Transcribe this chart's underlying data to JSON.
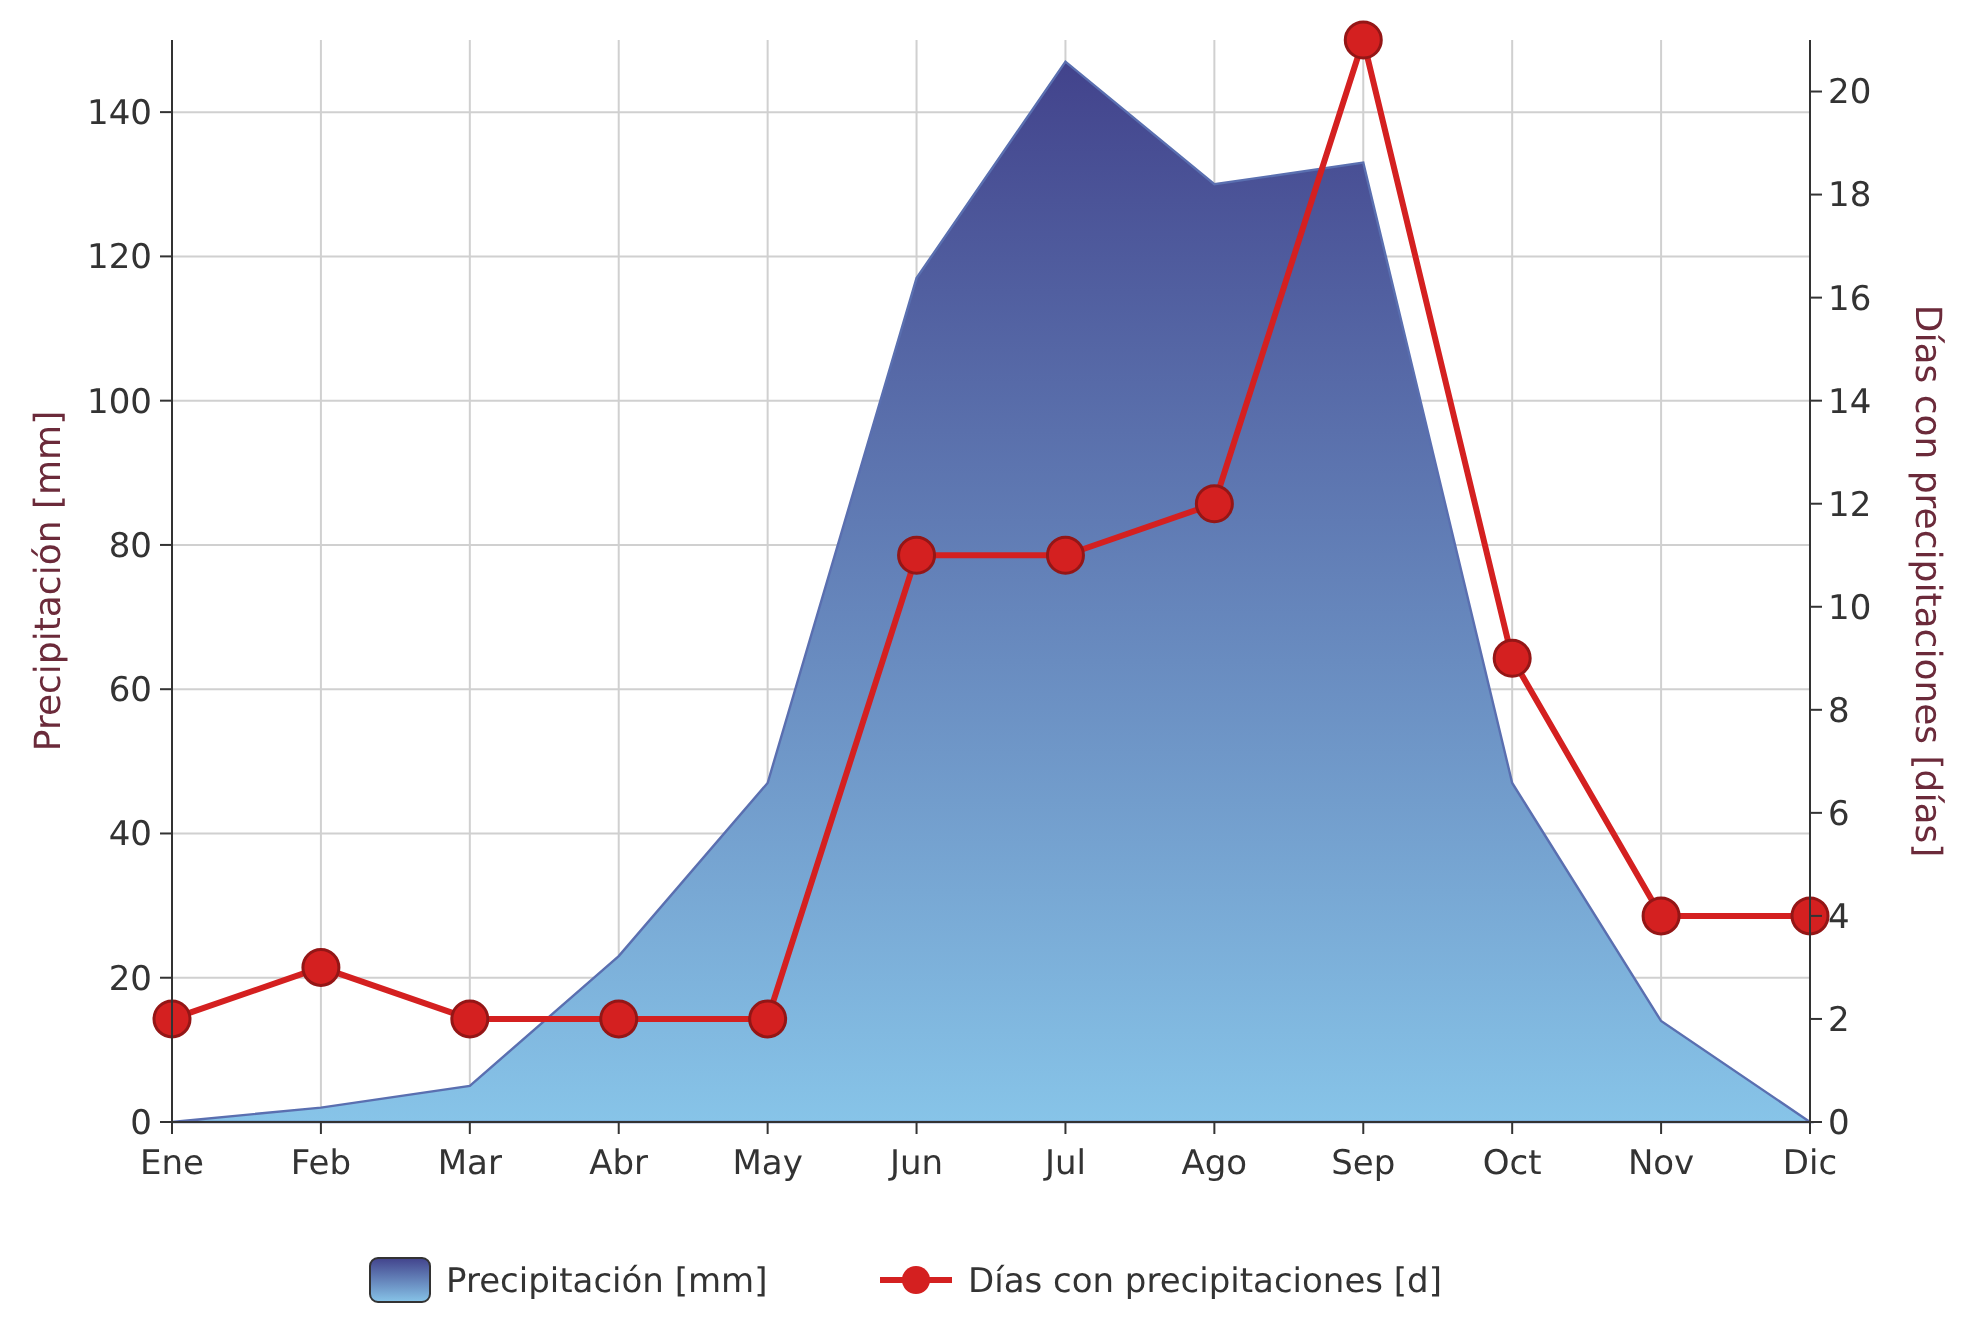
{
  "chart_data": {
    "type": "area",
    "categories": [
      "Ene",
      "Feb",
      "Mar",
      "Abr",
      "May",
      "Jun",
      "Jul",
      "Ago",
      "Sep",
      "Oct",
      "Nov",
      "Dic"
    ],
    "ylabel": "Precipitación [mm]",
    "y2label": "Días con precipitaciones [días]",
    "ylim": [
      0,
      150
    ],
    "yticks": [
      0,
      20,
      40,
      60,
      80,
      100,
      120,
      140
    ],
    "y2lim": [
      0,
      21
    ],
    "y2ticks": [
      0,
      2,
      4,
      6,
      8,
      10,
      12,
      14,
      16,
      18,
      20
    ],
    "grid": true,
    "legend": "bottom",
    "series": [
      {
        "name": "Precipitación [mm]",
        "color": "#5a6fb0",
        "values": [
          0,
          2,
          5,
          23,
          47,
          117,
          147,
          130,
          133,
          47,
          14,
          0
        ]
      },
      {
        "name": "Días con precipitaciones [d]",
        "type": "line",
        "axis": "y2",
        "color": "#d42020",
        "marker": "circle",
        "values": [
          2,
          3,
          2,
          2,
          2,
          11,
          11,
          12,
          21,
          9,
          4,
          4
        ]
      }
    ]
  }
}
